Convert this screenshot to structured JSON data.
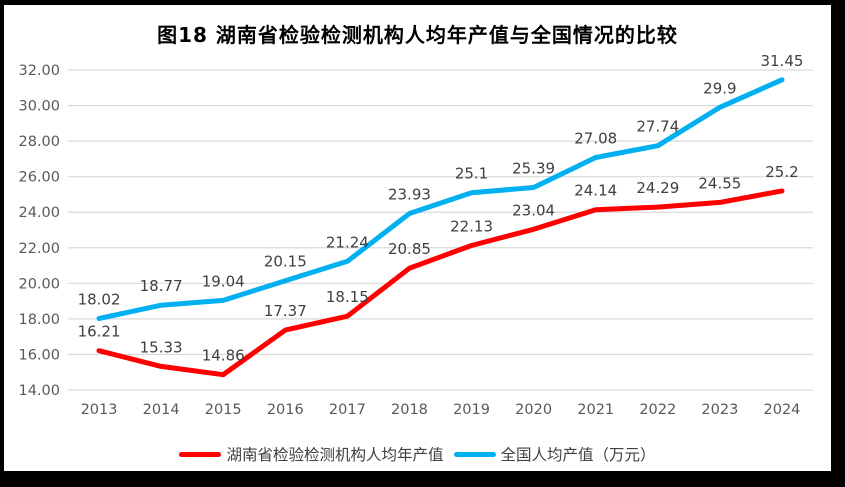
{
  "title": "图18 湖南省检验检测机构人均年产值与全国情况的比较",
  "chart_data": {
    "type": "line",
    "categories": [
      "2013",
      "2014",
      "2015",
      "2016",
      "2017",
      "2018",
      "2019",
      "2020",
      "2021",
      "2022",
      "2023",
      "2024"
    ],
    "series": [
      {
        "name": "湖南省检验检测机构人均年产值",
        "color": "#FF0000",
        "values": [
          16.21,
          15.33,
          14.86,
          17.37,
          18.15,
          20.85,
          22.13,
          23.04,
          24.14,
          24.29,
          24.55,
          25.2
        ]
      },
      {
        "name": "全国人均产值（万元）",
        "color": "#00B0F0",
        "values": [
          18.02,
          18.77,
          19.04,
          20.15,
          21.24,
          23.93,
          25.1,
          25.39,
          27.08,
          27.74,
          29.9,
          31.45
        ]
      }
    ],
    "xlabel": "",
    "ylabel": "",
    "ylim": [
      14,
      32
    ],
    "ytick_labels": [
      "14.00",
      "16.00",
      "18.00",
      "20.00",
      "22.00",
      "24.00",
      "26.00",
      "28.00",
      "30.00",
      "32.00"
    ],
    "grid": true,
    "data_labels": true,
    "legend_position": "bottom",
    "styles": {
      "frame_color": "#000000",
      "background": "#FFFFFF",
      "title_color": "#000000",
      "gridline_color": "#D9D9D9",
      "axis_text_color": "#595959",
      "data_label_color": "#404040",
      "legend_text_color": "#404040"
    }
  }
}
